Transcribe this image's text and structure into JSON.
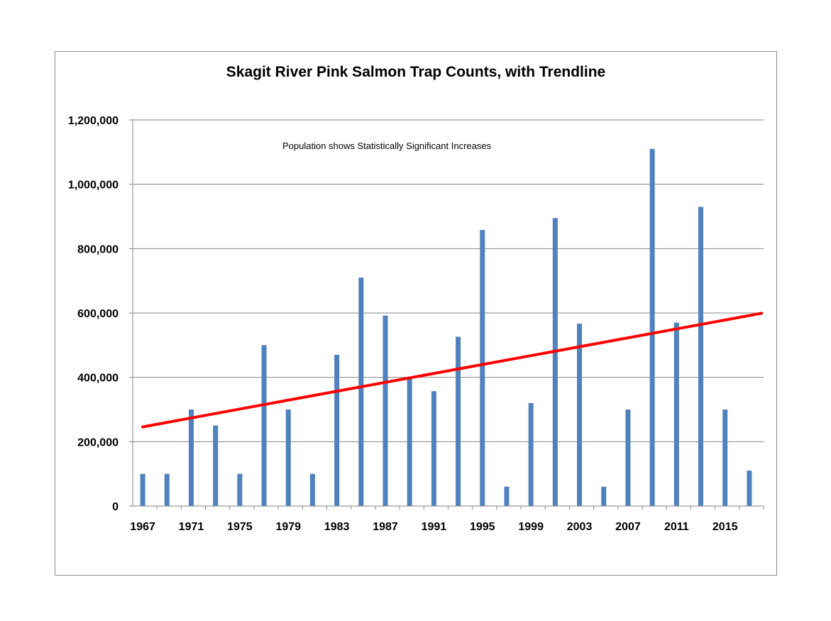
{
  "chart_data": {
    "type": "bar",
    "title": "Skagit River Pink Salmon Trap Counts, with Trendline",
    "annotation": "Population shows Statistically Significant Increases",
    "xlabel": "",
    "ylabel": "",
    "ylim": [
      0,
      1200000
    ],
    "y_ticks": [
      "0",
      "200,000",
      "400,000",
      "600,000",
      "800,000",
      "1,000,000",
      "1,200,000"
    ],
    "x_tick_labels": [
      "1967",
      "1971",
      "1975",
      "1979",
      "1983",
      "1987",
      "1991",
      "1995",
      "1999",
      "2003",
      "2007",
      "2011",
      "2015"
    ],
    "grid": true,
    "bar_color": "#4f81bd",
    "trend_color": "#ff0000",
    "categories": [
      1967,
      1969,
      1971,
      1973,
      1975,
      1977,
      1979,
      1981,
      1983,
      1985,
      1987,
      1989,
      1991,
      1993,
      1995,
      1997,
      1999,
      2001,
      2003,
      2005,
      2007,
      2009,
      2011,
      2013,
      2015,
      2017
    ],
    "values": [
      100000,
      100000,
      300000,
      250000,
      100000,
      500000,
      300000,
      100000,
      470000,
      710000,
      592000,
      400000,
      357000,
      526000,
      858000,
      60000,
      320000,
      895000,
      567000,
      60000,
      300000,
      1110000,
      570000,
      930000,
      300000,
      110000
    ],
    "trendline": {
      "start": [
        1967,
        246000
      ],
      "end": [
        2018,
        599000
      ]
    }
  }
}
